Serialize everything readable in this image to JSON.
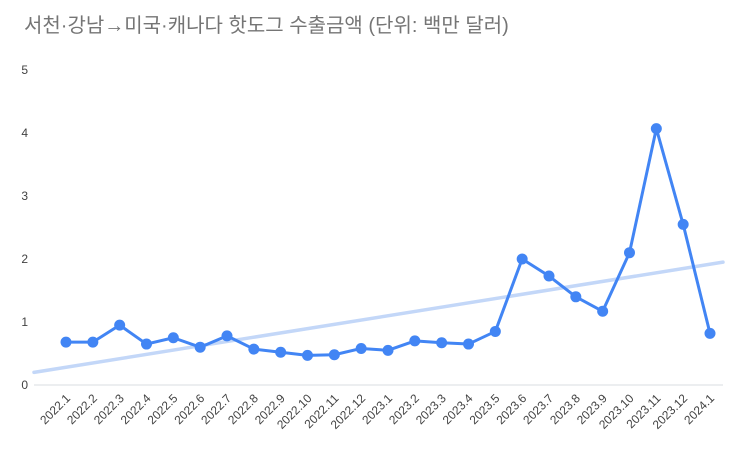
{
  "title": "서천·강남→미국·캐나다 핫도그 수출금액 (단위: 백만 달러)",
  "colors": {
    "line": "#4285f4",
    "trendline": "#c3d7f8",
    "title_text": "#757575",
    "tick_text": "#424242",
    "axis_line": "#dadce0",
    "background": "#ffffff"
  },
  "chart_data": {
    "type": "line",
    "title": "서천·강남→미국·캐나다 핫도그 수출금액 (단위: 백만 달러)",
    "x": [
      "2022.1",
      "2022.2",
      "2022.3",
      "2022.4",
      "2022.5",
      "2022.6",
      "2022.7",
      "2022.8",
      "2022.9",
      "2022.10",
      "2022.11",
      "2022.12",
      "2023.1",
      "2023.2",
      "2023.3",
      "2023.4",
      "2023.5",
      "2023.6",
      "2023.7",
      "2023.8",
      "2023.9",
      "2023.10",
      "2023.11",
      "2023.12",
      "2024.1"
    ],
    "values": [
      0.68,
      0.68,
      0.95,
      0.65,
      0.75,
      0.6,
      0.78,
      0.57,
      0.52,
      0.47,
      0.48,
      0.58,
      0.55,
      0.7,
      0.67,
      0.65,
      0.85,
      2.0,
      1.73,
      1.4,
      1.17,
      2.1,
      4.07,
      2.55,
      0.82
    ],
    "trendline": {
      "type": "linear",
      "start_value": 0.2,
      "end_value": 1.95
    },
    "ylim": [
      0,
      5
    ],
    "yticks": [
      0,
      1,
      2,
      3,
      4,
      5
    ],
    "grid": false,
    "legend_position": "none",
    "marker": "circle",
    "xlabel": "",
    "ylabel": ""
  }
}
